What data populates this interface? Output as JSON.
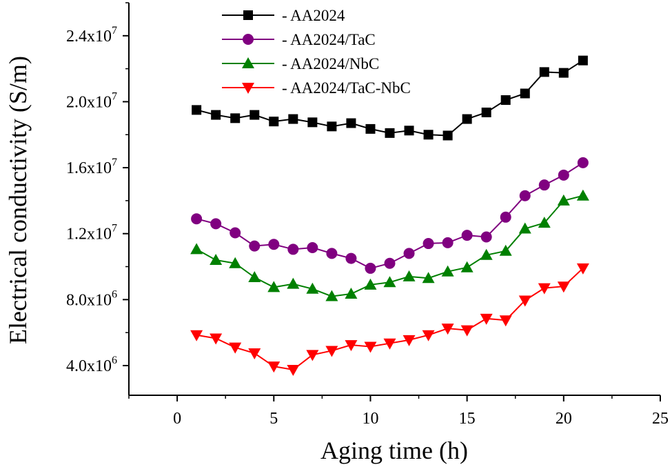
{
  "chart_data": {
    "type": "line",
    "xlabel": "Aging time (h)",
    "ylabel": "Electrical conductivity (S/m)",
    "xlim": [
      -2.5,
      25
    ],
    "ylim": [
      2200000,
      26000000
    ],
    "x_ticks": [
      0,
      5,
      10,
      15,
      20,
      25
    ],
    "x_tick_labels": [
      "0",
      "5",
      "10",
      "15",
      "20",
      "25"
    ],
    "y_ticks": [
      4000000,
      8000000,
      12000000,
      16000000,
      20000000,
      24000000
    ],
    "y_tick_labels": [
      {
        "mantissa": "4.0x10",
        "exp": "6"
      },
      {
        "mantissa": "8.0x10",
        "exp": "6"
      },
      {
        "mantissa": "1.2x10",
        "exp": "7"
      },
      {
        "mantissa": "1.6x10",
        "exp": "7"
      },
      {
        "mantissa": "2.0x10",
        "exp": "7"
      },
      {
        "mantissa": "2.4x10",
        "exp": "7"
      }
    ],
    "legend_position": "top-center",
    "x": [
      1,
      2,
      3,
      4,
      5,
      6,
      7,
      8,
      9,
      10,
      11,
      12,
      13,
      14,
      15,
      16,
      17,
      18,
      19,
      20,
      21
    ],
    "series": [
      {
        "name": "- AA2024",
        "color": "#000000",
        "marker": "square",
        "values": [
          19500000,
          19200000,
          19000000,
          19200000,
          18800000,
          18950000,
          18750000,
          18500000,
          18700000,
          18350000,
          18100000,
          18250000,
          18000000,
          17950000,
          18950000,
          19350000,
          20100000,
          20500000,
          21800000,
          21750000,
          22500000
        ]
      },
      {
        "name": "- AA2024/TaC",
        "color": "#800080",
        "marker": "circle",
        "values": [
          12900000,
          12600000,
          12050000,
          11250000,
          11350000,
          11050000,
          11150000,
          10800000,
          10500000,
          9900000,
          10200000,
          10800000,
          11400000,
          11450000,
          11900000,
          11800000,
          13000000,
          14300000,
          14950000,
          15550000,
          16300000
        ]
      },
      {
        "name": "- AA2024/NbC",
        "color": "#008000",
        "marker": "triangle-up",
        "values": [
          11050000,
          10400000,
          10200000,
          9350000,
          8750000,
          8950000,
          8650000,
          8200000,
          8350000,
          8900000,
          9050000,
          9400000,
          9300000,
          9700000,
          9950000,
          10700000,
          10950000,
          12300000,
          12650000,
          14000000,
          14300000
        ]
      },
      {
        "name": "- AA2024/TaC-NbC",
        "color": "#ff0000",
        "marker": "triangle-down",
        "values": [
          5850000,
          5650000,
          5100000,
          4750000,
          3950000,
          3750000,
          4650000,
          4900000,
          5250000,
          5150000,
          5350000,
          5550000,
          5850000,
          6250000,
          6150000,
          6850000,
          6750000,
          7950000,
          8700000,
          8800000,
          9900000
        ]
      }
    ]
  }
}
